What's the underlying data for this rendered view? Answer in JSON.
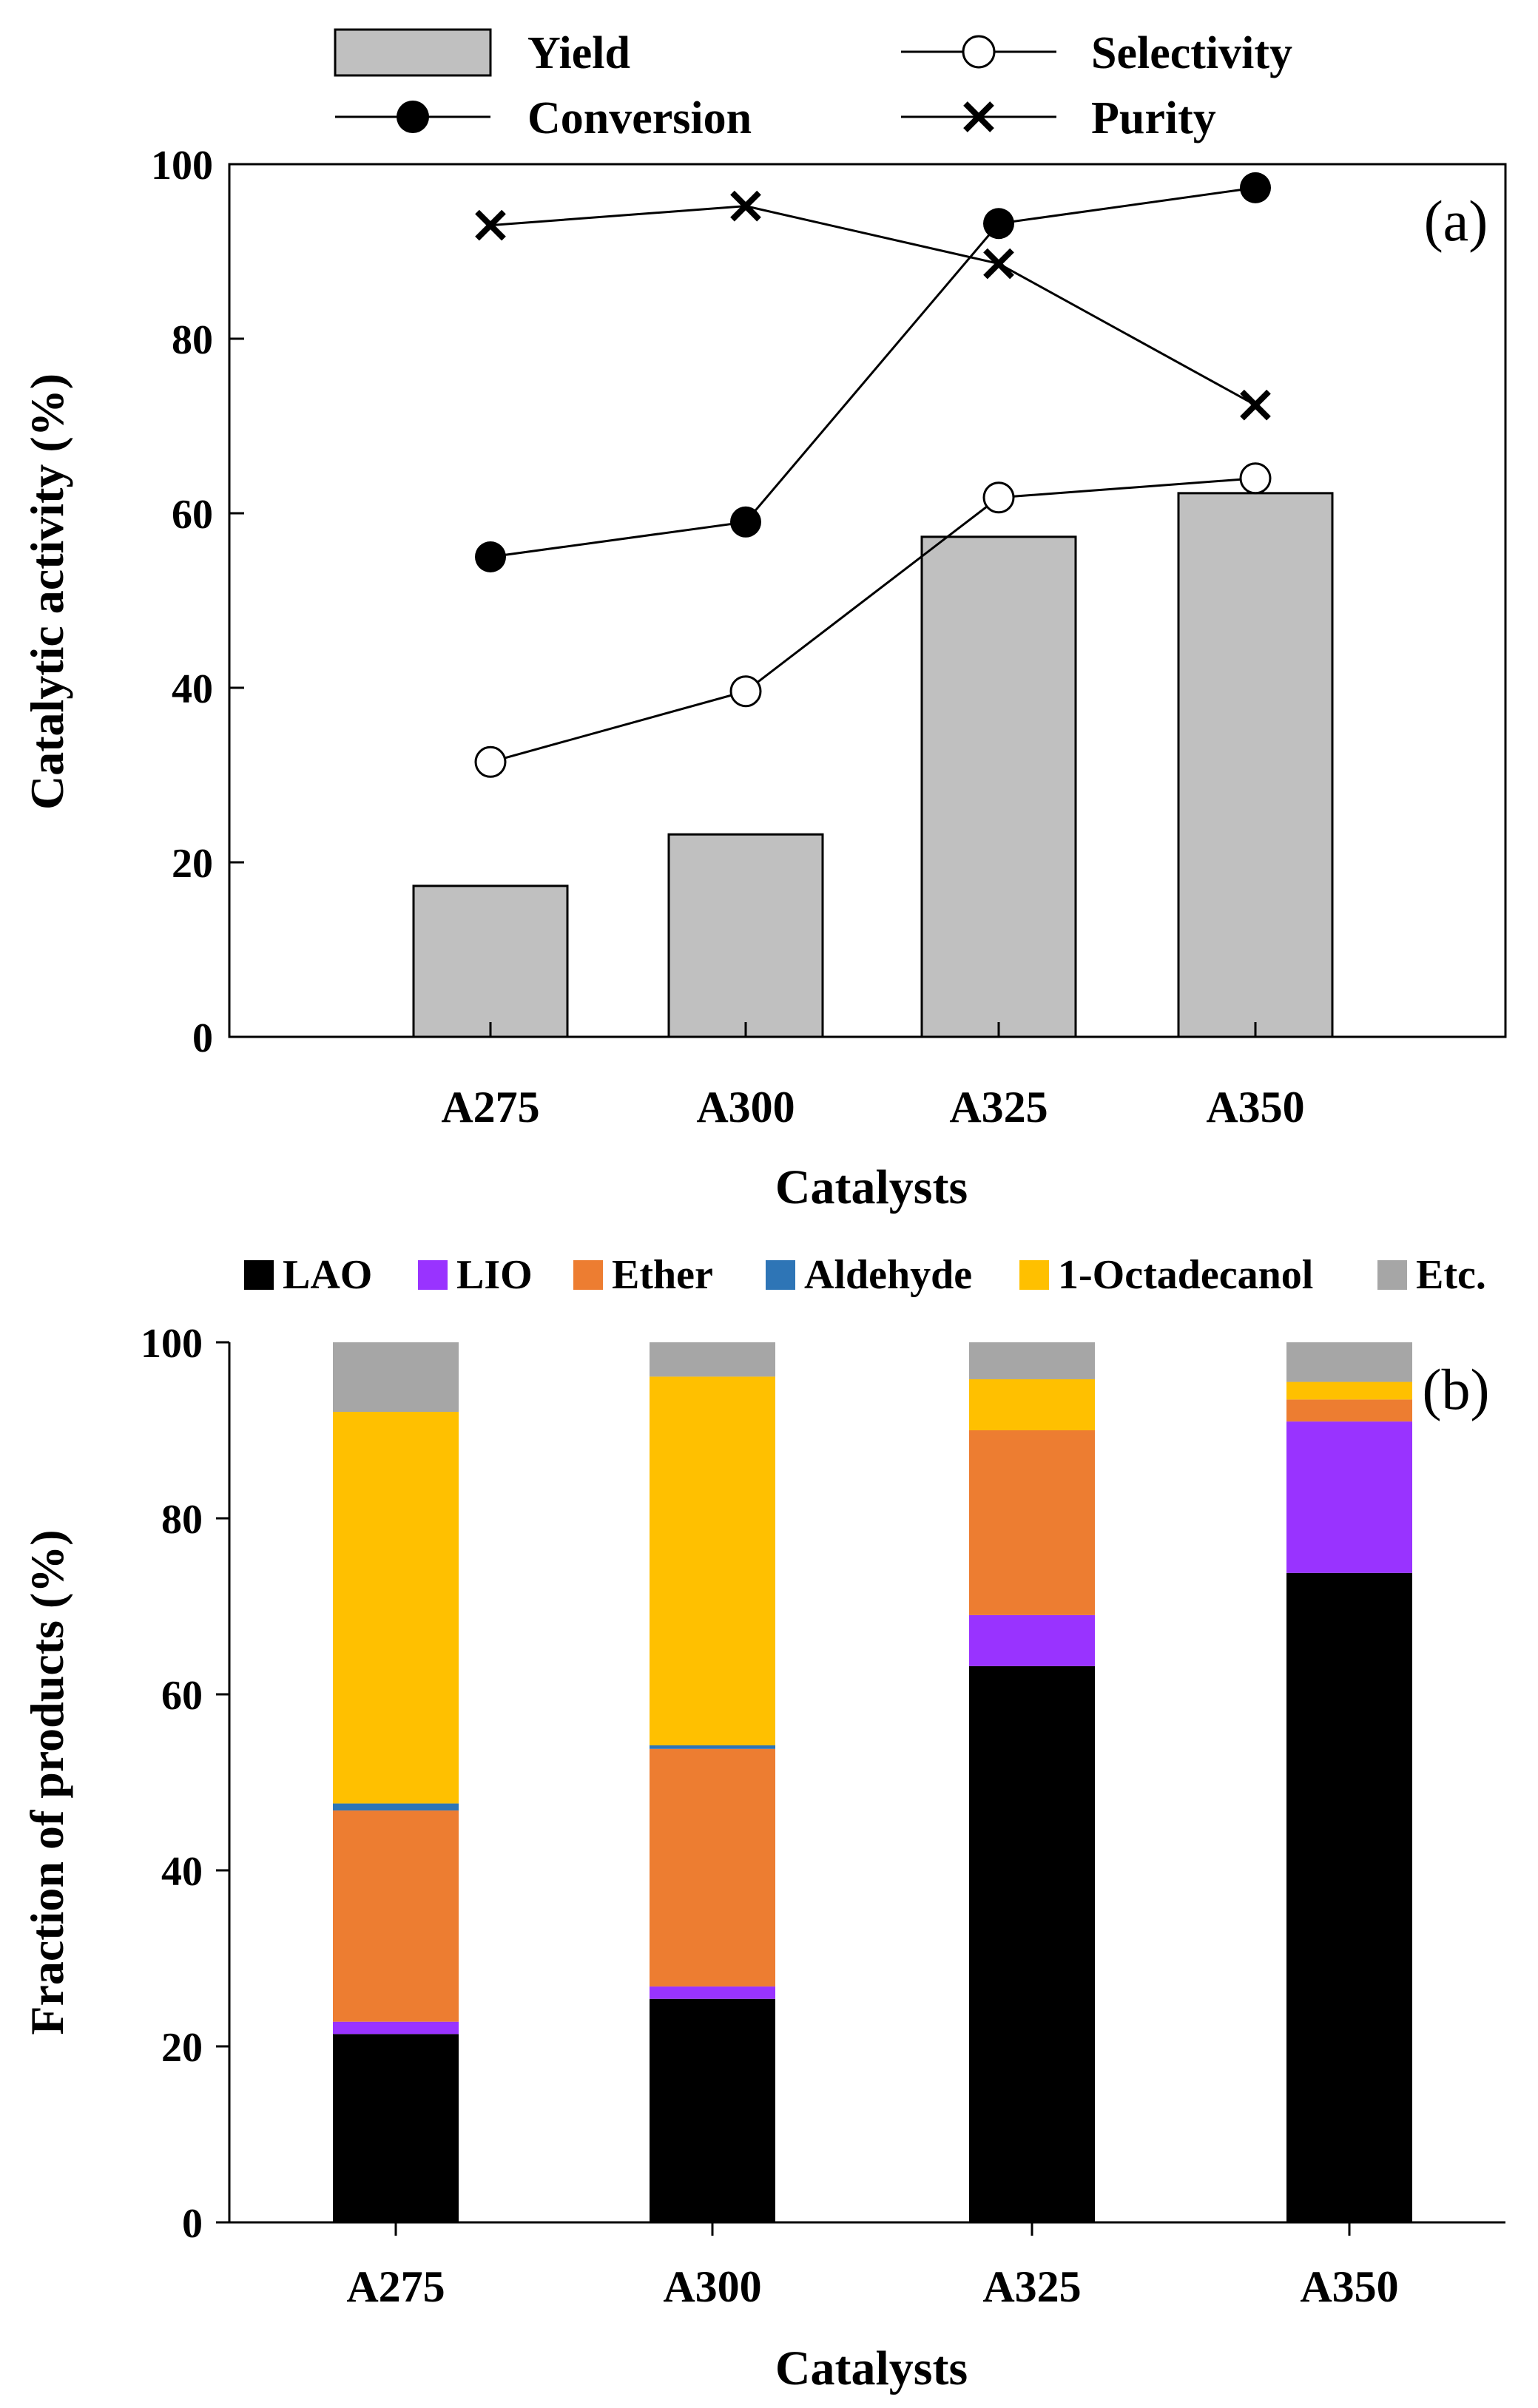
{
  "chart_data": [
    {
      "type": "bar",
      "panel_label": "(a)",
      "categories": [
        "A275",
        "A300",
        "A325",
        "A350"
      ],
      "xlabel": "Catalysts",
      "ylabel": "Catalytic activity (%)",
      "ylim": [
        0,
        100
      ],
      "yticks": [
        0,
        20,
        40,
        60,
        80,
        100
      ],
      "legend_position": "top",
      "series": [
        {
          "name": "Yield",
          "kind": "bar",
          "color": "#c0c0c0",
          "values": [
            17.3,
            23.2,
            57.3,
            62.3
          ]
        },
        {
          "name": "Selectivity",
          "kind": "line",
          "marker": "open-circle",
          "values": [
            31.5,
            39.6,
            61.8,
            64.0
          ]
        },
        {
          "name": "Conversion",
          "kind": "line",
          "marker": "filled-circle",
          "values": [
            55.0,
            59.0,
            93.2,
            97.3
          ]
        },
        {
          "name": "Purity",
          "kind": "line",
          "marker": "cross",
          "values": [
            93.0,
            95.2,
            88.6,
            72.4
          ]
        }
      ]
    },
    {
      "type": "bar",
      "stacked": true,
      "panel_label": "(b)",
      "categories": [
        "A275",
        "A300",
        "A325",
        "A350"
      ],
      "xlabel": "Catalysts",
      "ylabel": "Fraction of products (%)",
      "ylim": [
        0,
        100
      ],
      "yticks": [
        0,
        20,
        40,
        60,
        80,
        100
      ],
      "legend_position": "top",
      "series": [
        {
          "name": "LAO",
          "color": "#000000",
          "values": [
            21.4,
            25.4,
            63.2,
            73.8
          ]
        },
        {
          "name": "LIO",
          "color": "#9933ff",
          "values": [
            1.4,
            1.4,
            5.8,
            17.2
          ]
        },
        {
          "name": "Ether",
          "color": "#ed7d31",
          "values": [
            24.0,
            27.0,
            21.0,
            2.5
          ]
        },
        {
          "name": "Aldehyde",
          "color": "#2e75b6",
          "values": [
            0.8,
            0.4,
            0.0,
            0.0
          ]
        },
        {
          "name": "1-Octadecanol",
          "color": "#ffc000",
          "values": [
            44.5,
            41.9,
            5.8,
            2.0
          ]
        },
        {
          "name": "Etc.",
          "color": "#a6a6a6",
          "values": [
            7.9,
            3.9,
            4.2,
            4.5
          ]
        }
      ]
    }
  ]
}
